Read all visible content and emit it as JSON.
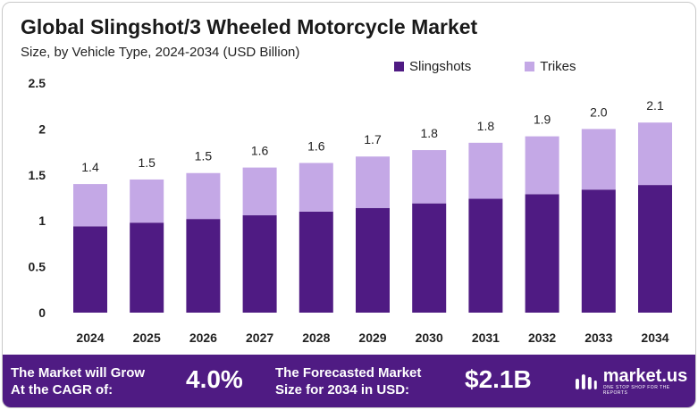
{
  "title": "Global Slingshot/3 Wheeled Motorcycle Market",
  "subtitle": "Size, by Vehicle Type, 2024-2034 (USD Billion)",
  "legend": [
    "Slingshots",
    "Trikes"
  ],
  "colors": {
    "slingshots": "#4f1b83",
    "trikes": "#c4a8e6",
    "footer": "#4f1b83"
  },
  "chart_data": {
    "type": "bar",
    "stacked": true,
    "categories": [
      "2024",
      "2025",
      "2026",
      "2027",
      "2028",
      "2029",
      "2030",
      "2031",
      "2032",
      "2033",
      "2034"
    ],
    "series": [
      {
        "name": "Slingshots",
        "values": [
          0.94,
          0.98,
          1.02,
          1.06,
          1.1,
          1.14,
          1.19,
          1.24,
          1.29,
          1.34,
          1.39
        ]
      },
      {
        "name": "Trikes",
        "values": [
          0.46,
          0.47,
          0.5,
          0.52,
          0.53,
          0.56,
          0.58,
          0.61,
          0.63,
          0.66,
          0.68
        ]
      }
    ],
    "totals_labels": [
      "1.4",
      "1.5",
      "1.5",
      "1.6",
      "1.6",
      "1.7",
      "1.8",
      "1.8",
      "1.9",
      "2.0",
      "2.1"
    ],
    "yticks": [
      "0",
      "0.5",
      "1",
      "1.5",
      "2",
      "2.5"
    ],
    "ylim": [
      0,
      2.5
    ],
    "grid": false,
    "legend_position": "top-right"
  },
  "footer": {
    "cagr_label_line1": "The Market will Grow",
    "cagr_label_line2": "At the CAGR of:",
    "cagr_value": "4.0%",
    "forecast_label_line1": "The Forecasted Market",
    "forecast_label_line2": "Size for 2034 in USD:",
    "forecast_value": "$2.1B",
    "brand_name": "market.us",
    "brand_tagline": "ONE STOP SHOP FOR THE REPORTS"
  }
}
